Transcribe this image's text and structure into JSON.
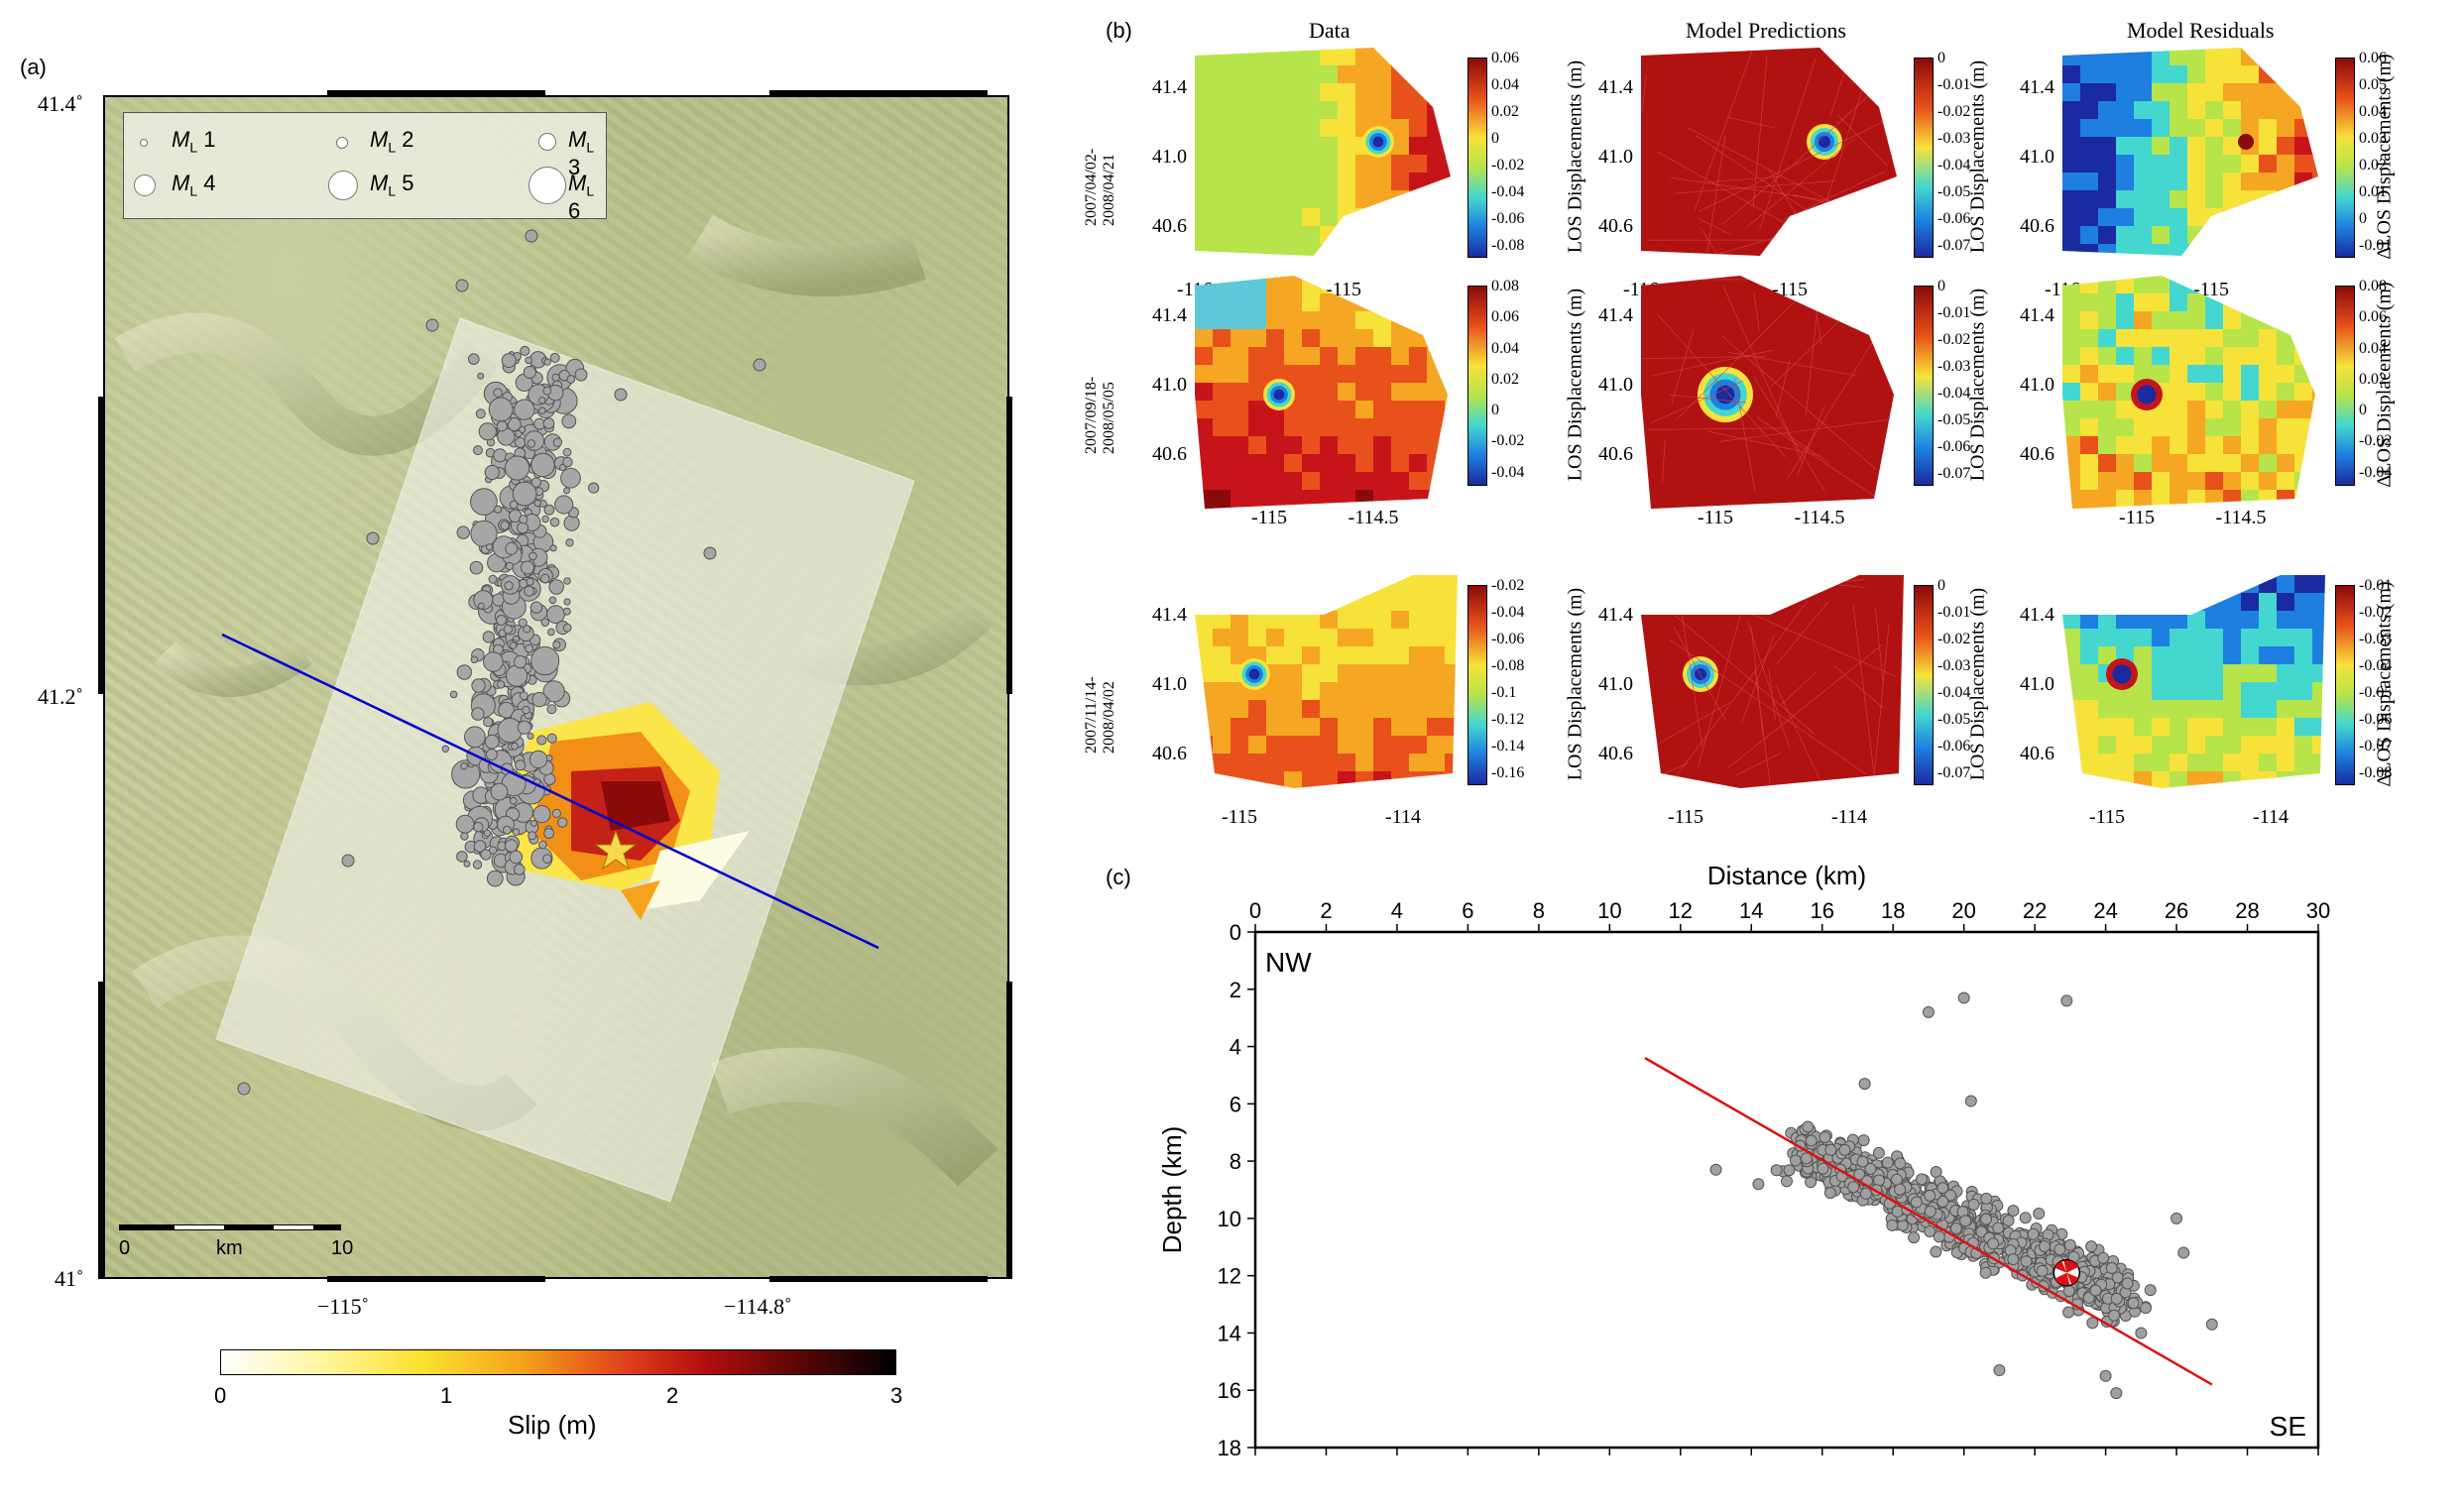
{
  "panel_a": {
    "label": "(a)",
    "lat_ticks": [
      "41.4˚",
      "41.2˚",
      "41˚"
    ],
    "lon_ticks": [
      "−115˚",
      "−114.8˚"
    ],
    "legend": [
      {
        "text": "1",
        "prefix": "M",
        "sub": "L"
      },
      {
        "text": "2",
        "prefix": "M",
        "sub": "L"
      },
      {
        "text": "3",
        "prefix": "M",
        "sub": "L"
      },
      {
        "text": "4",
        "prefix": "M",
        "sub": "L"
      },
      {
        "text": "5",
        "prefix": "M",
        "sub": "L"
      },
      {
        "text": "6",
        "prefix": "M",
        "sub": "L"
      }
    ],
    "scale": {
      "start": "0",
      "unit": "km",
      "end": "10"
    },
    "slip_colorbar": {
      "ticks": [
        "0",
        "1",
        "2",
        "3"
      ],
      "title": "Slip (m)"
    },
    "colors": {
      "profile_line": "#0000cc",
      "events": "#a6a6a6",
      "star": "#f5d94a"
    }
  },
  "panel_b": {
    "label": "(b)",
    "columns": [
      "Data",
      "Model Predictions",
      "Model Residuals"
    ],
    "rows": [
      {
        "date": [
          "2007/04/02-",
          "2008/04/21"
        ],
        "y_ticks": [
          "41.4",
          "41.0",
          "40.6"
        ],
        "x_ticks": [
          "-116",
          "-115"
        ],
        "cbars": [
          {
            "ticks": [
              "0.06",
              "0.04",
              "0.02",
              "0",
              "-0.02",
              "-0.04",
              "-0.06",
              "-0.08"
            ],
            "title": "LOS Displacements (m)"
          },
          {
            "ticks": [
              "0",
              "-0.01",
              "-0.02",
              "-0.03",
              "-0.04",
              "-0.05",
              "-0.06",
              "-0.07"
            ],
            "title": "LOS Displacements (m)"
          },
          {
            "ticks": [
              "0.06",
              "0.05",
              "0.04",
              "0.03",
              "0.02",
              "0.01",
              "0",
              "-0.01"
            ],
            "title": "ΔLOS Displacements (m)"
          }
        ]
      },
      {
        "date": [
          "2007/09/18-",
          "2008/05/05"
        ],
        "y_ticks": [
          "41.4",
          "41.0",
          "40.6"
        ],
        "x_ticks": [
          "-115",
          "-114.5"
        ],
        "cbars": [
          {
            "ticks": [
              "0.08",
              "0.06",
              "0.04",
              "0.02",
              "0",
              "-0.02",
              "-0.04"
            ],
            "title": "LOS Displacements (m)"
          },
          {
            "ticks": [
              "0",
              "-0.01",
              "-0.02",
              "-0.03",
              "-0.04",
              "-0.05",
              "-0.06",
              "-0.07"
            ],
            "title": "LOS Displacements (m)"
          },
          {
            "ticks": [
              "0.08",
              "0.06",
              "0.04",
              "0.02",
              "0",
              "-0.02",
              "-0.04"
            ],
            "title": "ΔLOS Displacements (m)"
          }
        ]
      },
      {
        "date": [
          "2007/11/14-",
          "2008/04/02"
        ],
        "y_ticks": [
          "41.4",
          "41.0",
          "40.6"
        ],
        "x_ticks": [
          "-115",
          "-114"
        ],
        "cbars": [
          {
            "ticks": [
              "-0.02",
              "-0.04",
              "-0.06",
              "-0.08",
              "-0.1",
              "-0.12",
              "-0.14",
              "-0.16"
            ],
            "title": "LOS Displacements (m)"
          },
          {
            "ticks": [
              "0",
              "-0.01",
              "-0.02",
              "-0.03",
              "-0.04",
              "-0.05",
              "-0.06",
              "-0.07"
            ],
            "title": "LOS Displacements (m)"
          },
          {
            "ticks": [
              "-0.01",
              "-0.02",
              "-0.03",
              "-0.04",
              "-0.05",
              "-0.06",
              "-0.07",
              "-0.08"
            ],
            "title": "ΔLOS Displacements (m)"
          }
        ]
      }
    ]
  },
  "panel_c": {
    "label": "(c)",
    "corner_labels": {
      "left": "NW",
      "right": "SE"
    },
    "chart_data": {
      "type": "scatter",
      "xlabel": "Distance (km)",
      "ylabel": "Depth (km)",
      "xlim": [
        0,
        30
      ],
      "ylim": [
        0,
        18
      ],
      "y_inverted": true,
      "x_ticks": [
        0,
        2,
        4,
        6,
        8,
        10,
        12,
        14,
        16,
        18,
        20,
        22,
        24,
        26,
        28,
        30
      ],
      "y_ticks": [
        0,
        2,
        4,
        6,
        8,
        10,
        12,
        14,
        16,
        18
      ],
      "fault_line": {
        "x": [
          11,
          27
        ],
        "y": [
          4.4,
          15.8
        ]
      },
      "mainshock": {
        "x": 22.9,
        "y": 11.9
      },
      "outliers": [
        {
          "x": 19.0,
          "y": 2.8
        },
        {
          "x": 20.0,
          "y": 2.3
        },
        {
          "x": 22.9,
          "y": 2.4
        },
        {
          "x": 13.0,
          "y": 8.3
        },
        {
          "x": 17.2,
          "y": 5.3
        },
        {
          "x": 20.2,
          "y": 5.9
        },
        {
          "x": 26.0,
          "y": 10.0
        },
        {
          "x": 26.2,
          "y": 11.2
        },
        {
          "x": 27.0,
          "y": 13.7
        },
        {
          "x": 24.0,
          "y": 15.5
        },
        {
          "x": 24.3,
          "y": 16.1
        },
        {
          "x": 21.0,
          "y": 15.3
        },
        {
          "x": 15.0,
          "y": 8.7
        },
        {
          "x": 14.2,
          "y": 8.8
        },
        {
          "x": 25.0,
          "y": 14.0
        }
      ],
      "cluster": {
        "x_range": [
          15,
          25
        ],
        "y_range": [
          6.5,
          14.5
        ],
        "trend": "dipping to SE"
      },
      "colors": {
        "events": "#a0a0a0",
        "fault": "#e01010"
      }
    }
  }
}
